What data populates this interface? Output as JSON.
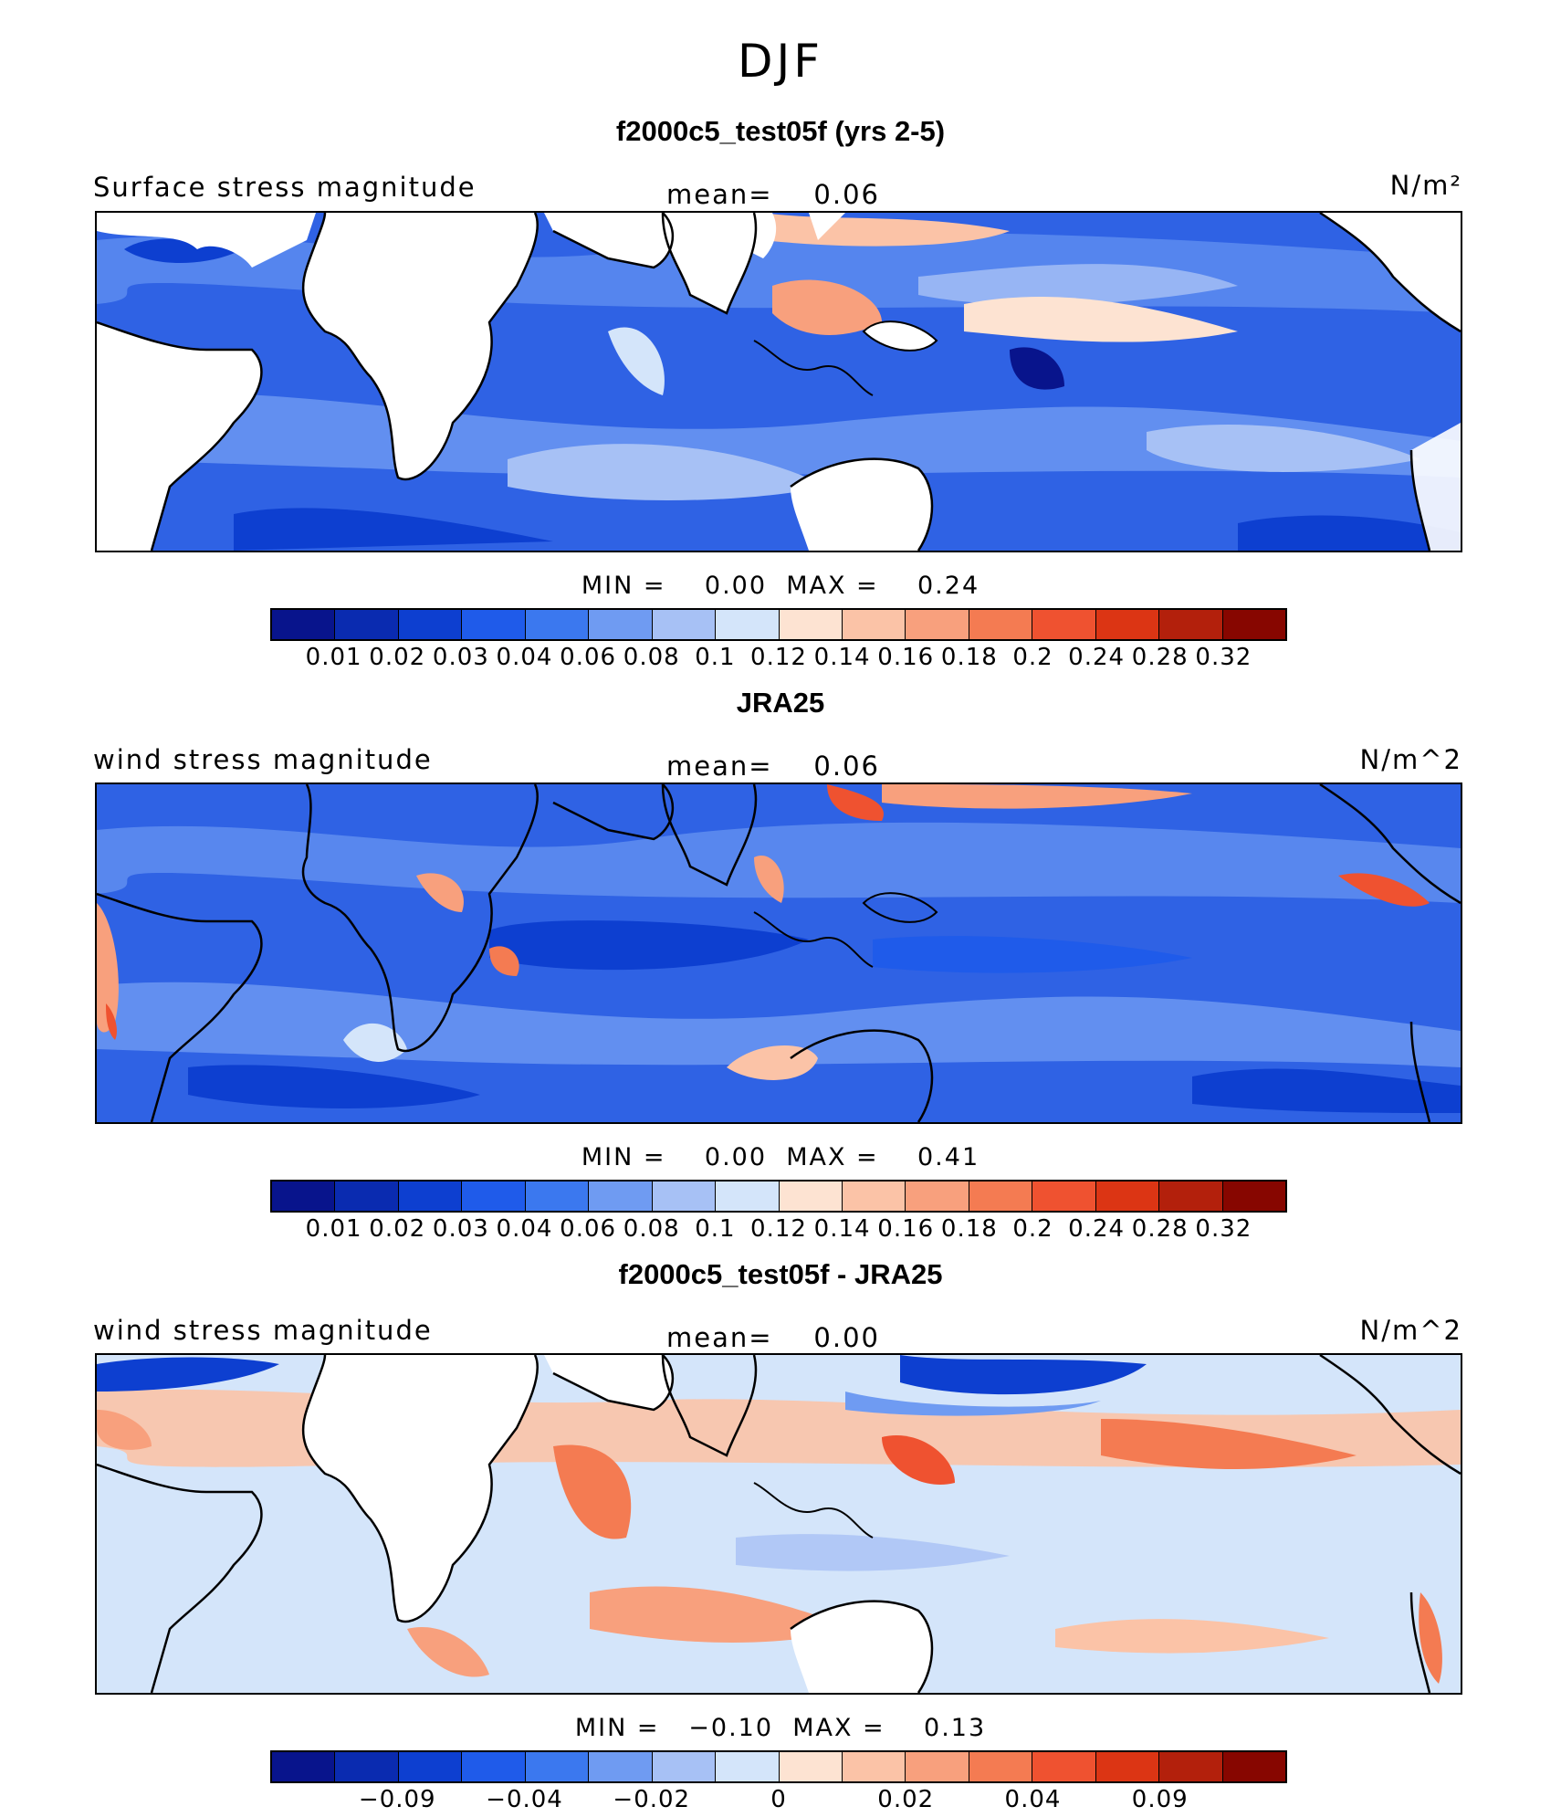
{
  "title": "DJF",
  "panels": [
    {
      "id": "p1",
      "title": "f2000c5_test05f (yrs 2-5)",
      "left_label": "Surface stress magnitude",
      "mean_label": "mean=",
      "mean_value": "0.06",
      "units": "N/m²",
      "min_label": "MIN =",
      "min_value": "0.00",
      "max_label": "MAX =",
      "max_value": "0.24",
      "colorbar": {
        "colors": [
          "#08148c",
          "#0a2bb0",
          "#0d3fd0",
          "#1f5bea",
          "#3b78ef",
          "#6f9bf2",
          "#a7c1f5",
          "#d4e5fa",
          "#fde3d2",
          "#fbc3a7",
          "#f8a07d",
          "#f47b52",
          "#ef5230",
          "#dc3514",
          "#b3200c",
          "#870600"
        ],
        "labels": [
          "0.01",
          "0.02",
          "0.03",
          "0.04",
          "0.06",
          "0.08",
          "0.1",
          "0.12",
          "0.14",
          "0.16",
          "0.18",
          "0.2",
          "0.24",
          "0.28",
          "0.32"
        ]
      }
    },
    {
      "id": "p2",
      "title": "JRA25",
      "left_label": "wind stress magnitude",
      "mean_label": "mean=",
      "mean_value": "0.06",
      "units": "N/m^2",
      "min_label": "MIN =",
      "min_value": "0.00",
      "max_label": "MAX =",
      "max_value": "0.41",
      "colorbar": {
        "colors": [
          "#08148c",
          "#0a2bb0",
          "#0d3fd0",
          "#1f5bea",
          "#3b78ef",
          "#6f9bf2",
          "#a7c1f5",
          "#d4e5fa",
          "#fde3d2",
          "#fbc3a7",
          "#f8a07d",
          "#f47b52",
          "#ef5230",
          "#dc3514",
          "#b3200c",
          "#870600"
        ],
        "labels": [
          "0.01",
          "0.02",
          "0.03",
          "0.04",
          "0.06",
          "0.08",
          "0.1",
          "0.12",
          "0.14",
          "0.16",
          "0.18",
          "0.2",
          "0.24",
          "0.28",
          "0.32"
        ]
      }
    },
    {
      "id": "p3",
      "title": "f2000c5_test05f - JRA25",
      "left_label": "wind stress magnitude",
      "mean_label": "mean=",
      "mean_value": "0.00",
      "units": "N/m^2",
      "min_label": "MIN =",
      "min_value": "−0.10",
      "max_label": "MAX =",
      "max_value": "0.13",
      "colorbar": {
        "colors": [
          "#08148c",
          "#0a2bb0",
          "#0d3fd0",
          "#1f5bea",
          "#3b78ef",
          "#6f9bf2",
          "#a7c1f5",
          "#d4e5fa",
          "#fde3d2",
          "#fbc3a7",
          "#f8a07d",
          "#f47b52",
          "#ef5230",
          "#dc3514",
          "#b3200c",
          "#870600"
        ],
        "labels": [
          "−0.09",
          "−0.04",
          "−0.02",
          "0",
          "0.02",
          "0.04",
          "0.09"
        ]
      }
    }
  ]
}
